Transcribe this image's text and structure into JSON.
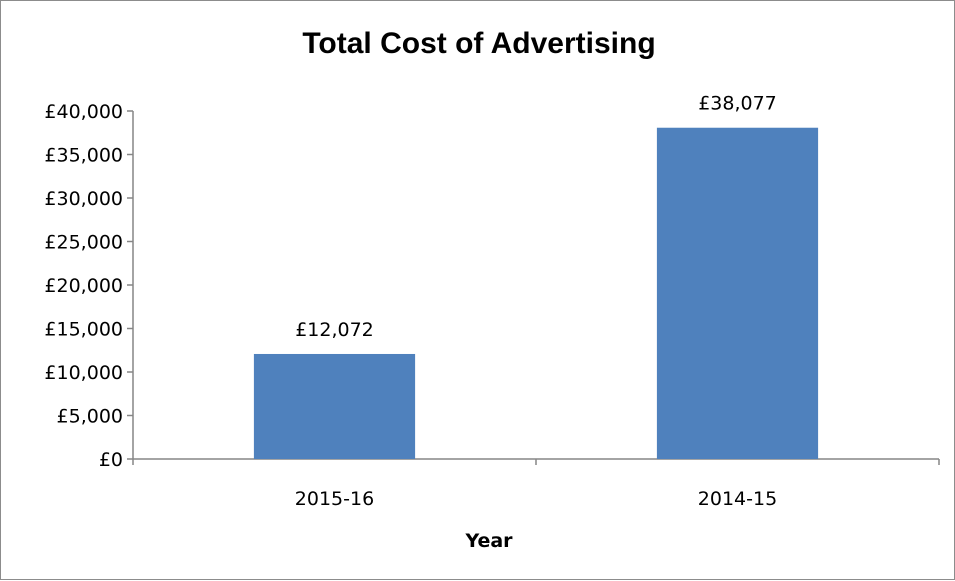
{
  "chart_data": {
    "type": "bar",
    "title": "Total Cost of Advertising",
    "xlabel": "Year",
    "ylabel": "",
    "categories": [
      "2015-16",
      "2014-15"
    ],
    "values": [
      12072,
      38077
    ],
    "data_labels": [
      "£12,072",
      "£38,077"
    ],
    "ylim": [
      0,
      40000
    ],
    "yticks": [
      0,
      5000,
      10000,
      15000,
      20000,
      25000,
      30000,
      35000,
      40000
    ],
    "ytick_labels": [
      "£0",
      "£5,000",
      "£10,000",
      "£15,000",
      "£20,000",
      "£25,000",
      "£30,000",
      "£35,000",
      "£40,000"
    ],
    "grid": false,
    "legend": "none",
    "bar_color": "#4f81bd"
  }
}
